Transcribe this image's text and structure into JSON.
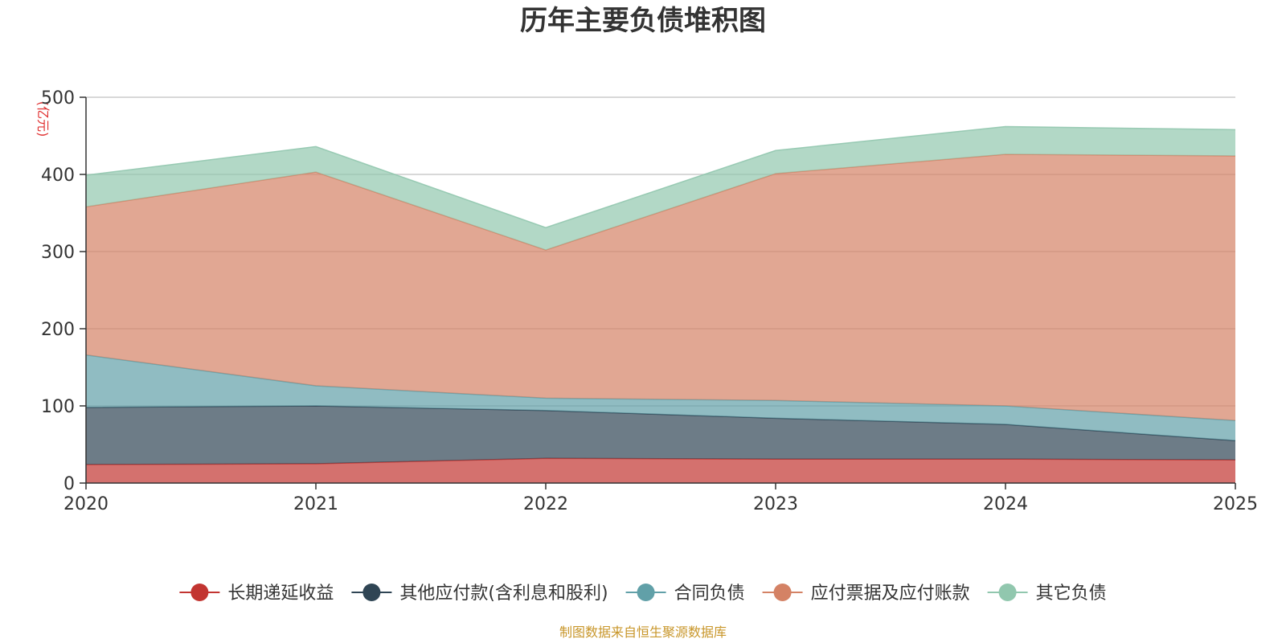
{
  "chart_data": {
    "type": "area",
    "stacked": true,
    "title": "历年主要负债堆积图",
    "unit_label": "(亿元)",
    "x": [
      "2020",
      "2021",
      "2022",
      "2023",
      "2024",
      "2025"
    ],
    "ylim": [
      0,
      500
    ],
    "yticks": [
      "0",
      "100",
      "200",
      "300",
      "400",
      "500"
    ],
    "grid": true,
    "legend_position": "bottom",
    "series": [
      {
        "name": "长期递延收益",
        "color": "#c23531",
        "values": [
          24,
          25,
          32,
          31,
          31,
          30
        ]
      },
      {
        "name": "其他应付款(含利息和股利)",
        "color": "#2f4554",
        "values": [
          74,
          75,
          62,
          53,
          45,
          25
        ]
      },
      {
        "name": "合同负债",
        "color": "#61a0a8",
        "values": [
          68,
          26,
          16,
          23,
          24,
          26
        ]
      },
      {
        "name": "应付票据及应付账款",
        "color": "#d48265",
        "values": [
          192,
          277,
          192,
          294,
          326,
          343
        ]
      },
      {
        "name": "其它负债",
        "color": "#91c7ae",
        "values": [
          41,
          33,
          29,
          30,
          36,
          34
        ]
      }
    ],
    "source": "制图数据来自恒生聚源数据库"
  }
}
